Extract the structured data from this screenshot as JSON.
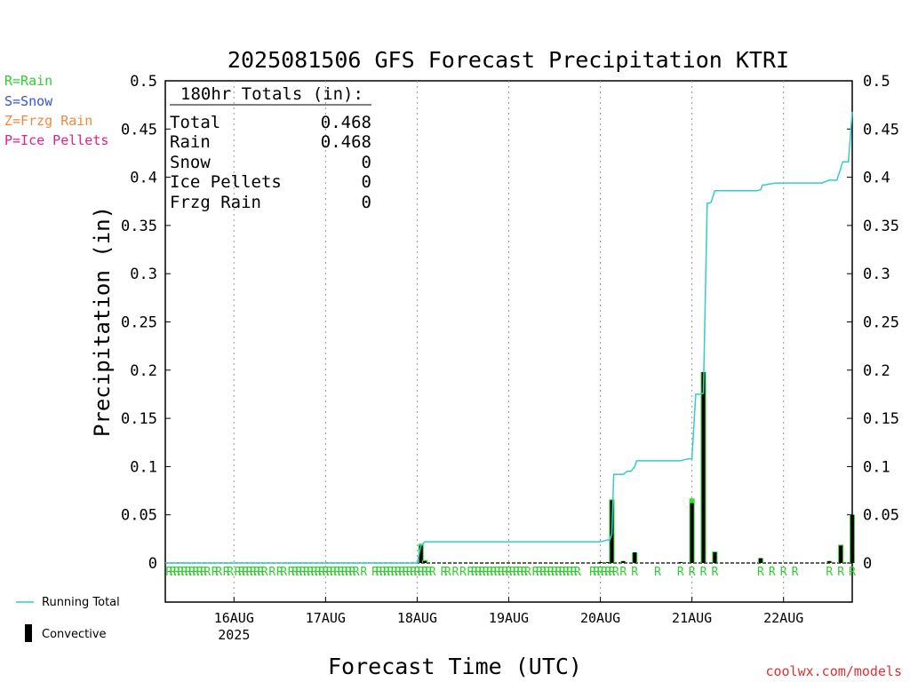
{
  "chart_data": {
    "type": "bar+line",
    "title": "2025081506 GFS Forecast Precipitation KTRI",
    "ylabel": "Precipitation (in)",
    "xlabel": "Forecast Time (UTC)",
    "ylim": [
      -0.04,
      0.5
    ],
    "y_ticks": [
      0,
      0.05,
      0.1,
      0.15,
      0.2,
      0.25,
      0.3,
      0.35,
      0.4,
      0.45,
      0.5
    ],
    "y_tick_labels": [
      "0",
      "0.05",
      "0.1",
      "0.15",
      "0.2",
      "0.25",
      "0.3",
      "0.35",
      "0.4",
      "0.45",
      "0.5"
    ],
    "x_unit": "hours from 2025-08-15 06Z",
    "xlim": [
      0,
      180
    ],
    "x_ticks": [
      {
        "hour": 18,
        "label": "16AUG",
        "sub": "2025"
      },
      {
        "hour": 42,
        "label": "17AUG",
        "sub": ""
      },
      {
        "hour": 66,
        "label": "18AUG",
        "sub": ""
      },
      {
        "hour": 90,
        "label": "19AUG",
        "sub": ""
      },
      {
        "hour": 114,
        "label": "20AUG",
        "sub": ""
      },
      {
        "hour": 138,
        "label": "21AUG",
        "sub": ""
      },
      {
        "hour": 162,
        "label": "22AUG",
        "sub": ""
      }
    ],
    "grid": "vertical dotted at day boundaries",
    "legend": [
      {
        "label": "R=Rain",
        "color": "#33cc33"
      },
      {
        "label": "S=Snow",
        "color": "#3355dd"
      },
      {
        "label": "Z=Frzg Rain",
        "color": "#f08a3c"
      },
      {
        "label": "P=Ice Pellets",
        "color": "#e0208a"
      }
    ],
    "series_legend": {
      "running_total": "Running Total",
      "convective": "Convective"
    },
    "totals": {
      "header": "180hr Totals (in):",
      "rows": [
        {
          "label": "Total",
          "value": "0.468"
        },
        {
          "label": "Rain",
          "value": "0.468"
        },
        {
          "label": "Snow",
          "value": "0"
        },
        {
          "label": "Ice Pellets",
          "value": "0"
        },
        {
          "label": "Frzg Rain",
          "value": "0"
        }
      ]
    },
    "bars": [
      {
        "hour": 67,
        "total": 0.02,
        "convective": 0.018
      },
      {
        "hour": 68,
        "total": 0.003,
        "convective": 0.002
      },
      {
        "hour": 114,
        "total": 0.001,
        "convective": 0.001
      },
      {
        "hour": 116,
        "total": 0.001,
        "convective": 0.001
      },
      {
        "hour": 117,
        "total": 0.066,
        "convective": 0.065
      },
      {
        "hour": 120,
        "total": 0.002,
        "convective": 0.002
      },
      {
        "hour": 123,
        "total": 0.011,
        "convective": 0.011
      },
      {
        "hour": 135,
        "total": 0.001,
        "convective": 0.001
      },
      {
        "hour": 138,
        "total": 0.067,
        "convective": 0.062
      },
      {
        "hour": 141,
        "total": 0.198,
        "convective": 0.198
      },
      {
        "hour": 144,
        "total": 0.012,
        "convective": 0.011
      },
      {
        "hour": 156,
        "total": 0.005,
        "convective": 0.005
      },
      {
        "hour": 174,
        "total": 0.002,
        "convective": 0.002
      },
      {
        "hour": 177,
        "total": 0.019,
        "convective": 0.018
      },
      {
        "hour": 180,
        "total": 0.05,
        "convective": 0.05
      }
    ],
    "running_total": {
      "x": [
        0,
        66,
        67,
        67.5,
        68,
        110,
        114,
        116,
        116.5,
        117,
        117.5,
        120,
        121,
        122,
        123,
        123.5,
        135,
        136,
        137,
        138,
        139,
        140,
        141,
        142,
        142.5,
        143,
        144,
        155,
        156,
        156.5,
        157,
        160,
        170,
        171,
        172,
        174,
        175,
        176,
        177.5,
        179,
        180
      ],
      "y": [
        0,
        0,
        0.018,
        0.02,
        0.022,
        0.022,
        0.022,
        0.024,
        0.024,
        0.03,
        0.092,
        0.092,
        0.095,
        0.095,
        0.1,
        0.106,
        0.106,
        0.107,
        0.108,
        0.108,
        0.175,
        0.175,
        0.176,
        0.373,
        0.373,
        0.374,
        0.386,
        0.386,
        0.387,
        0.392,
        0.392,
        0.394,
        0.394,
        0.394,
        0.394,
        0.397,
        0.397,
        0.397,
        0.416,
        0.416,
        0.468
      ]
    },
    "precip_type_markers": {
      "symbol": "R",
      "hours": [
        1,
        2,
        3,
        4,
        5,
        6,
        7,
        8,
        9,
        10,
        11,
        13,
        14,
        16,
        17,
        19,
        20,
        21,
        22,
        23,
        24,
        25,
        26,
        28,
        30,
        31,
        33,
        34,
        35,
        36,
        37,
        38,
        39,
        40,
        41,
        42,
        43,
        44,
        45,
        46,
        47,
        48,
        49,
        50,
        52,
        55,
        56,
        57,
        58,
        59,
        60,
        61,
        62,
        63,
        64,
        65,
        66,
        67,
        68,
        69,
        70,
        73,
        74,
        76,
        78,
        80,
        81,
        82,
        83,
        84,
        85,
        86,
        87,
        88,
        89,
        90,
        91,
        92,
        93,
        94,
        95,
        97,
        98,
        99,
        100,
        101,
        102,
        103,
        104,
        105,
        106,
        107,
        108,
        112,
        113,
        114,
        115,
        116,
        117,
        118,
        120,
        123,
        129,
        135,
        138,
        141,
        144,
        156,
        159,
        162,
        165,
        174,
        177,
        180
      ]
    }
  },
  "footer": {
    "credit": "coolwx.com/models"
  }
}
